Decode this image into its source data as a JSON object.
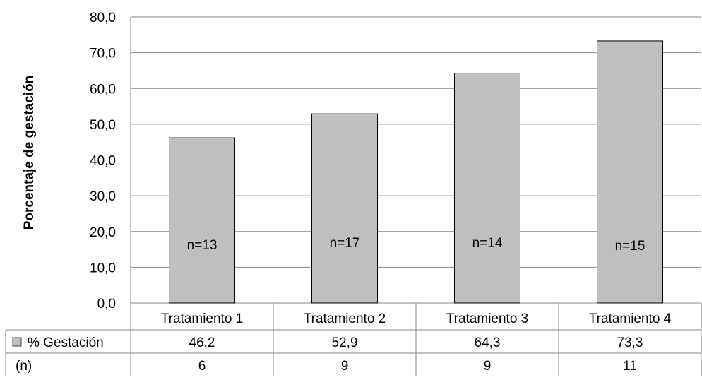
{
  "chart_data": {
    "type": "bar",
    "ylabel": "Porcentaje de gestación",
    "ylim": [
      0,
      80
    ],
    "y_ticks": [
      "0,0",
      "10,0",
      "20,0",
      "30,0",
      "40,0",
      "50,0",
      "60,0",
      "70,0",
      "80,0"
    ],
    "grid": true,
    "categories": [
      "Tratamiento 1",
      "Tratamiento 2",
      "Tratamiento 3",
      "Tratamiento 4"
    ],
    "series": [
      {
        "name": "% Gestación",
        "values": [
          46.2,
          52.9,
          64.3,
          73.3
        ],
        "color": "#bfbfbf"
      }
    ],
    "bar_labels": [
      "n=13",
      "n=17",
      "n=14",
      "n=15"
    ],
    "data_table": {
      "rows": [
        {
          "label": "% Gestación",
          "cells": [
            "46,2",
            "52,9",
            "64,3",
            "73,3"
          ],
          "legend_key": true
        },
        {
          "label": "(n)",
          "cells": [
            "6",
            "9",
            "9",
            "11"
          ],
          "legend_key": false
        }
      ]
    }
  }
}
